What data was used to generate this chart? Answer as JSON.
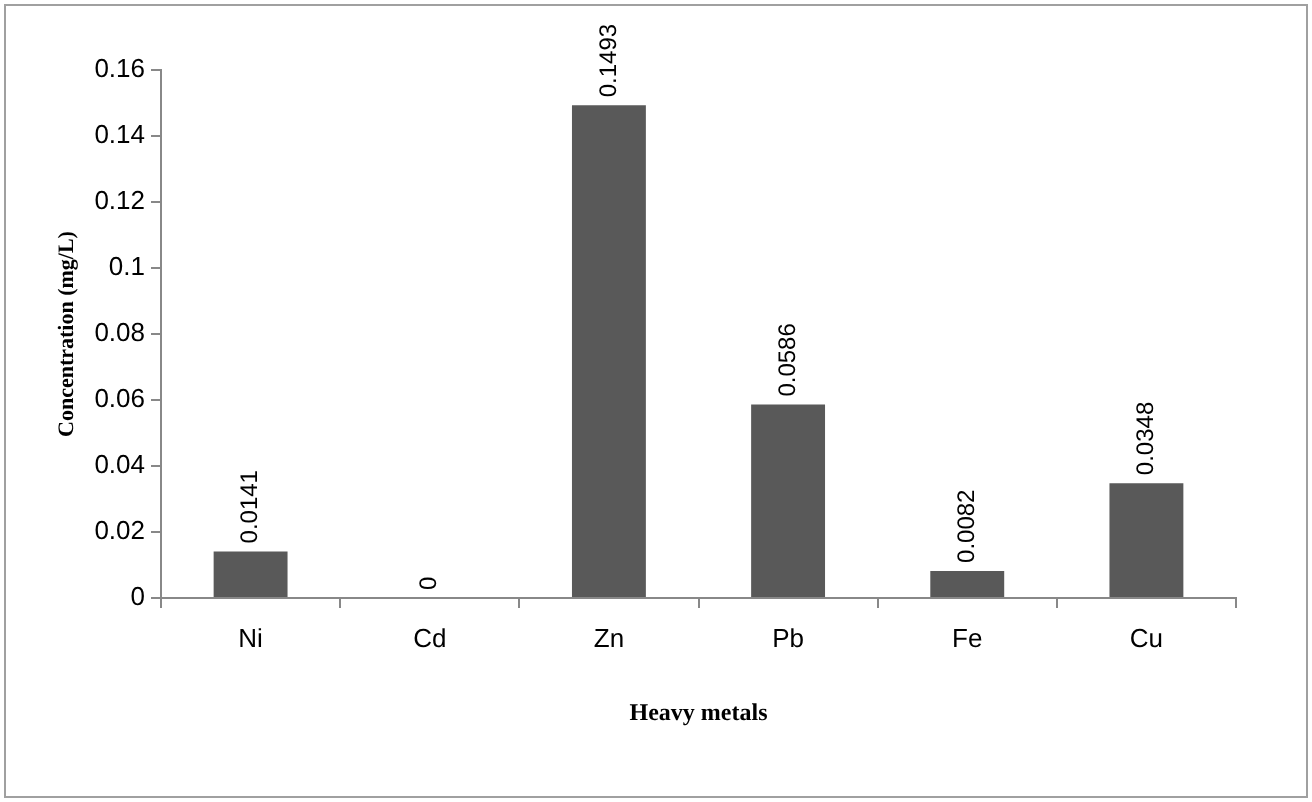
{
  "chart_data": {
    "type": "bar",
    "xlabel": "Heavy metals",
    "ylabel": "Concentration (mg/L)",
    "categories": [
      "Ni",
      "Cd",
      "Zn",
      "Pb",
      "Fe",
      "Cu"
    ],
    "values": [
      0.0141,
      0,
      0.1493,
      0.0586,
      0.0082,
      0.0348
    ],
    "color": "#595959",
    "ylim": [
      0,
      0.16
    ],
    "yticks": [
      0,
      0.02,
      0.04,
      0.06,
      0.08,
      0.1,
      0.12,
      0.14,
      0.16
    ],
    "data_labels": true,
    "grid": false,
    "legend": false
  }
}
